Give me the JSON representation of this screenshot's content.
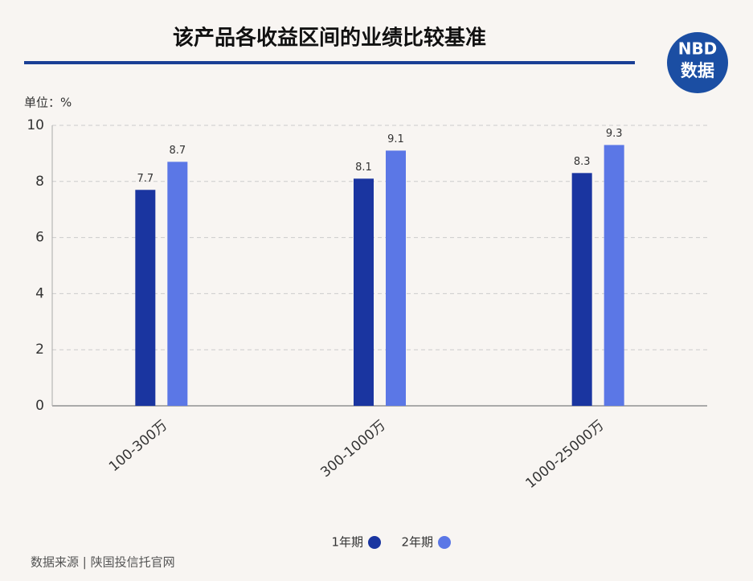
{
  "chart_data": {
    "type": "bar",
    "title": "该产品各收益区间的业绩比较基准",
    "unit_label": "单位：%",
    "source": "数据来源 | 陕国投信托官网",
    "categories": [
      "100-300万",
      "300-1000万",
      "1000-25000万"
    ],
    "series": [
      {
        "name": "1年期",
        "color": "#1a35a0",
        "values": [
          7.7,
          8.1,
          8.3
        ]
      },
      {
        "name": "2年期",
        "color": "#5b77e6",
        "values": [
          8.7,
          9.1,
          9.3
        ]
      }
    ],
    "ylim": [
      0,
      10
    ],
    "yticks": [
      0,
      2,
      4,
      6,
      8,
      10
    ],
    "grid": true
  },
  "logo": {
    "brand": "NBD",
    "label": "数据"
  }
}
